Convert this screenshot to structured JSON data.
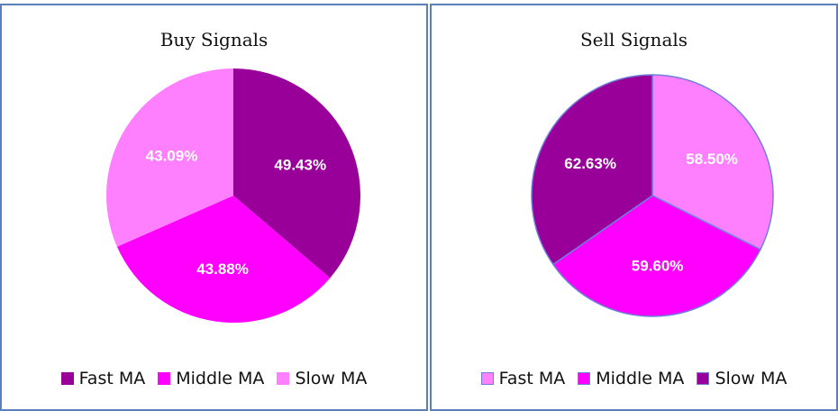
{
  "colors": {
    "fast_buy": "#990099",
    "middle_buy": "#ff00ff",
    "slow_buy": "#ff80ff",
    "fast_sell": "#ff80ff",
    "middle_sell": "#ff00ff",
    "slow_sell": "#990099",
    "sell_outline": "#6f7fd9"
  },
  "chart_data": [
    {
      "type": "pie",
      "title": "Buy Signals",
      "categories": [
        "Fast MA",
        "Middle MA",
        "Slow MA"
      ],
      "values": [
        49.43,
        43.88,
        43.09
      ],
      "labels": [
        "49.43%",
        "43.88%",
        "43.09%"
      ],
      "colors": [
        "#990099",
        "#ff00ff",
        "#ff80ff"
      ],
      "legend_position": "bottom"
    },
    {
      "type": "pie",
      "title": "Sell Signals",
      "categories": [
        "Fast MA",
        "Middle MA",
        "Slow MA"
      ],
      "values": [
        58.5,
        59.6,
        62.63
      ],
      "labels": [
        "58.50%",
        "59.60%",
        "62.63%"
      ],
      "colors": [
        "#ff80ff",
        "#ff00ff",
        "#990099"
      ],
      "legend_position": "bottom"
    }
  ]
}
